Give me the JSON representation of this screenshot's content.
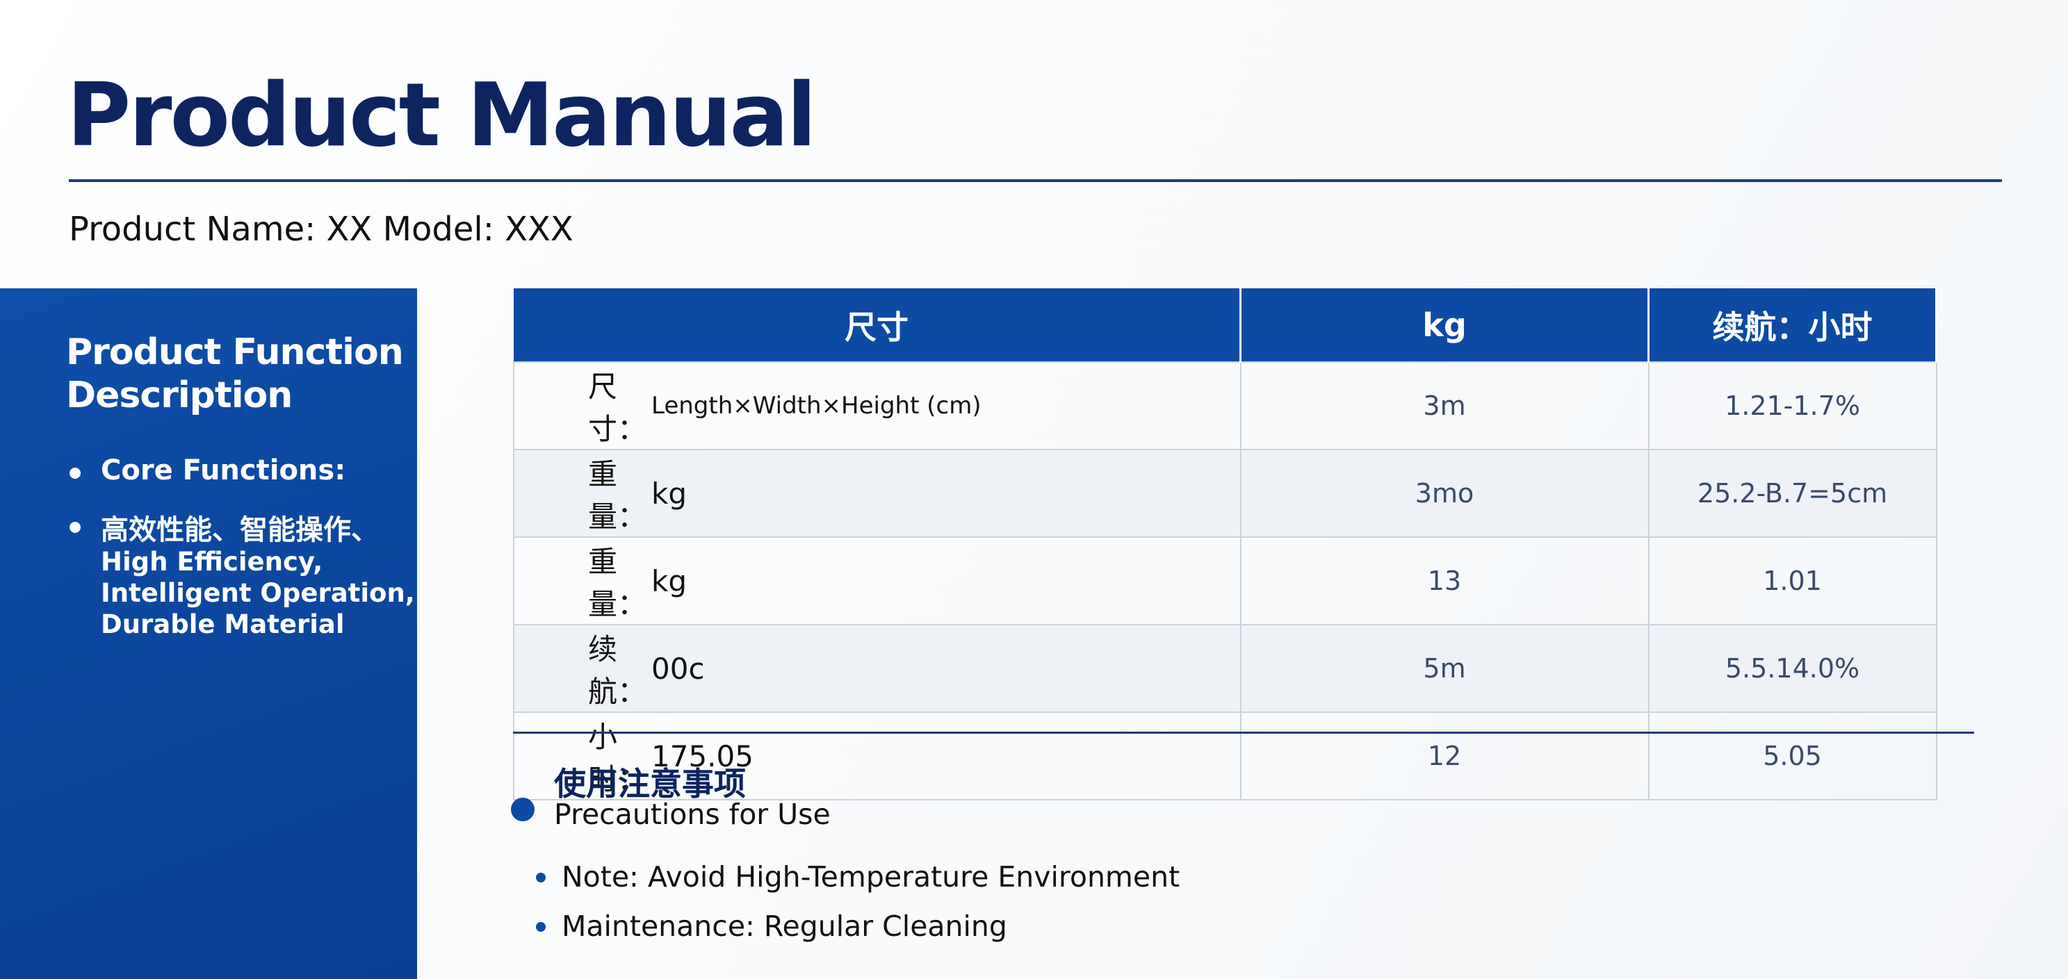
{
  "header": {
    "title": "Product Manual",
    "product_line": "Product Name: XX Model: XXX"
  },
  "sidebar": {
    "title_lines": [
      "Product Function",
      "Description"
    ],
    "items": [
      "Core Functions:",
      "高效性能、智能操作、"
    ],
    "item_continuation": [
      "High Efficiency,",
      "Intelligent Operation,",
      "Durable Material"
    ]
  },
  "table": {
    "headers": [
      "尺寸",
      "kg",
      "续航：小时"
    ],
    "rows": [
      [
        "尺寸：",
        "Length×Width×Height (cm)",
        "3m",
        "1.21-1.7%"
      ],
      [
        "重量：",
        "kg",
        "3mo",
        "25.2-B.7=5cm"
      ],
      [
        "重量：",
        "kg",
        "13",
        "1.01"
      ],
      [
        "续航：",
        "00c",
        "5m",
        "5.5.14.0%"
      ],
      [
        "小时：",
        "175.05",
        "12",
        "5.05"
      ]
    ]
  },
  "precautions": {
    "title": "使用注意事项",
    "subtitle": "Precautions for Use",
    "items": [
      "Note: Avoid High-Temperature Environment",
      "Maintenance: Regular Cleaning"
    ]
  }
}
